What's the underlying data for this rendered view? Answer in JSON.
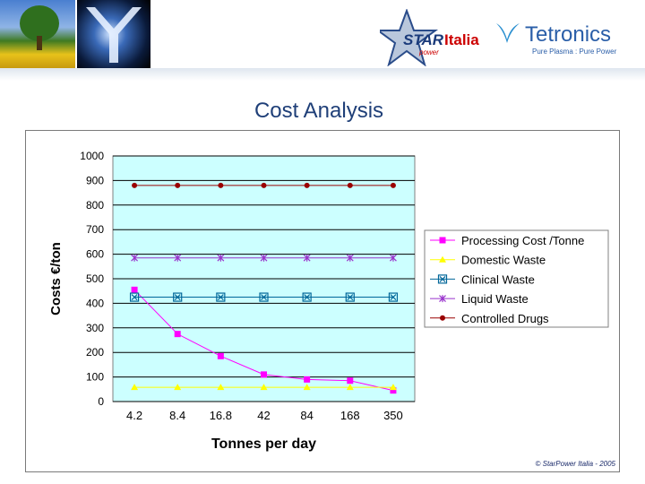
{
  "header": {
    "brand_star": "STAR",
    "brand_italia": "Italia",
    "brand_power": "power",
    "brand_tetronics": "Tetronics",
    "tetronics_tagline": "Pure Plasma : Pure Power"
  },
  "page_title": "Cost Analysis",
  "credit": "© StarPower Italia - 2005",
  "chart_data": {
    "type": "line",
    "title": "",
    "xlabel": "Tonnes per day",
    "ylabel": "Costs €/ton",
    "categories": [
      "4.2",
      "8.4",
      "16.8",
      "42",
      "84",
      "168",
      "350"
    ],
    "ylim": [
      0,
      1000
    ],
    "yticks": [
      0,
      100,
      200,
      300,
      400,
      500,
      600,
      700,
      800,
      900,
      1000
    ],
    "grid": "horizontal",
    "legend_position": "right",
    "plot_background": "#ccffff",
    "series": [
      {
        "name": "Processing  Cost /Tonne",
        "color": "#ff00ff",
        "marker": "square",
        "values": [
          455,
          275,
          185,
          110,
          90,
          85,
          45
        ]
      },
      {
        "name": "Domestic Waste",
        "color": "#ffff00",
        "marker": "triangle",
        "values": [
          58,
          58,
          58,
          58,
          58,
          58,
          58
        ]
      },
      {
        "name": "Clinical  Waste",
        "color": "#006699",
        "marker": "boxx",
        "values": [
          425,
          425,
          425,
          425,
          425,
          425,
          425
        ]
      },
      {
        "name": "Liquid Waste",
        "color": "#9933cc",
        "marker": "star",
        "values": [
          585,
          585,
          585,
          585,
          585,
          585,
          585
        ]
      },
      {
        "name": "Controlled  Drugs",
        "color": "#990000",
        "marker": "circle",
        "values": [
          880,
          880,
          880,
          880,
          880,
          880,
          880
        ]
      }
    ]
  }
}
